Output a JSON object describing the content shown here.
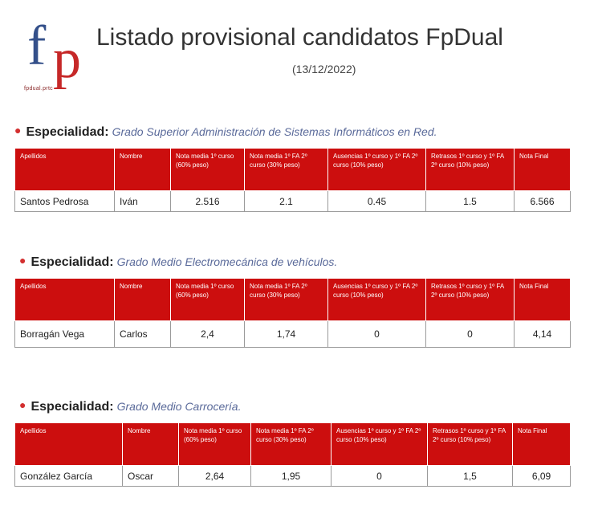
{
  "logo": {
    "letter_f": "f",
    "letter_p": "p",
    "tagline": "fpdual.prtc"
  },
  "header": {
    "title": "Listado provisional candidatos FpDual",
    "date": "(13/12/2022)"
  },
  "table_headers": [
    "Apellidos",
    "Nombre",
    "Nota media 1º curso (60% peso)",
    "Nota media 1º FA 2º curso (30% peso)",
    "Ausencias 1º curso y 1º FA 2º curso (10% peso)",
    "Retrasos 1º curso y 1º FA 2º curso (10% peso)",
    "Nota Final"
  ],
  "sections": [
    {
      "label": "Especialidad:",
      "value": "Grado Superior Administración de Sistemas Informáticos en Red.",
      "rows": [
        {
          "apellidos": "Santos Pedrosa",
          "nombre": "Iván",
          "media1": "2.516",
          "media2": "2.1",
          "ausencias": "0.45",
          "retrasos": "1.5",
          "final": "6.566"
        }
      ]
    },
    {
      "label": "Especialidad:",
      "value": "Grado Medio Electromecánica de vehículos.",
      "rows": [
        {
          "apellidos": "Borragán Vega",
          "nombre": "Carlos",
          "media1": "2,4",
          "media2": "1,74",
          "ausencias": "0",
          "retrasos": "0",
          "final": "4,14"
        }
      ]
    },
    {
      "label": "Especialidad:",
      "value": "Grado Medio Carrocería.",
      "rows": [
        {
          "apellidos": "González García",
          "nombre": "Oscar",
          "media1": "2,64",
          "media2": "1,95",
          "ausencias": "0",
          "retrasos": "1,5",
          "final": "6,09"
        }
      ]
    }
  ],
  "colors": {
    "header_bg": "#cc0e0e",
    "bullet": "#d32f2f",
    "logo_blue": "#34508a",
    "logo_red": "#c62828"
  }
}
